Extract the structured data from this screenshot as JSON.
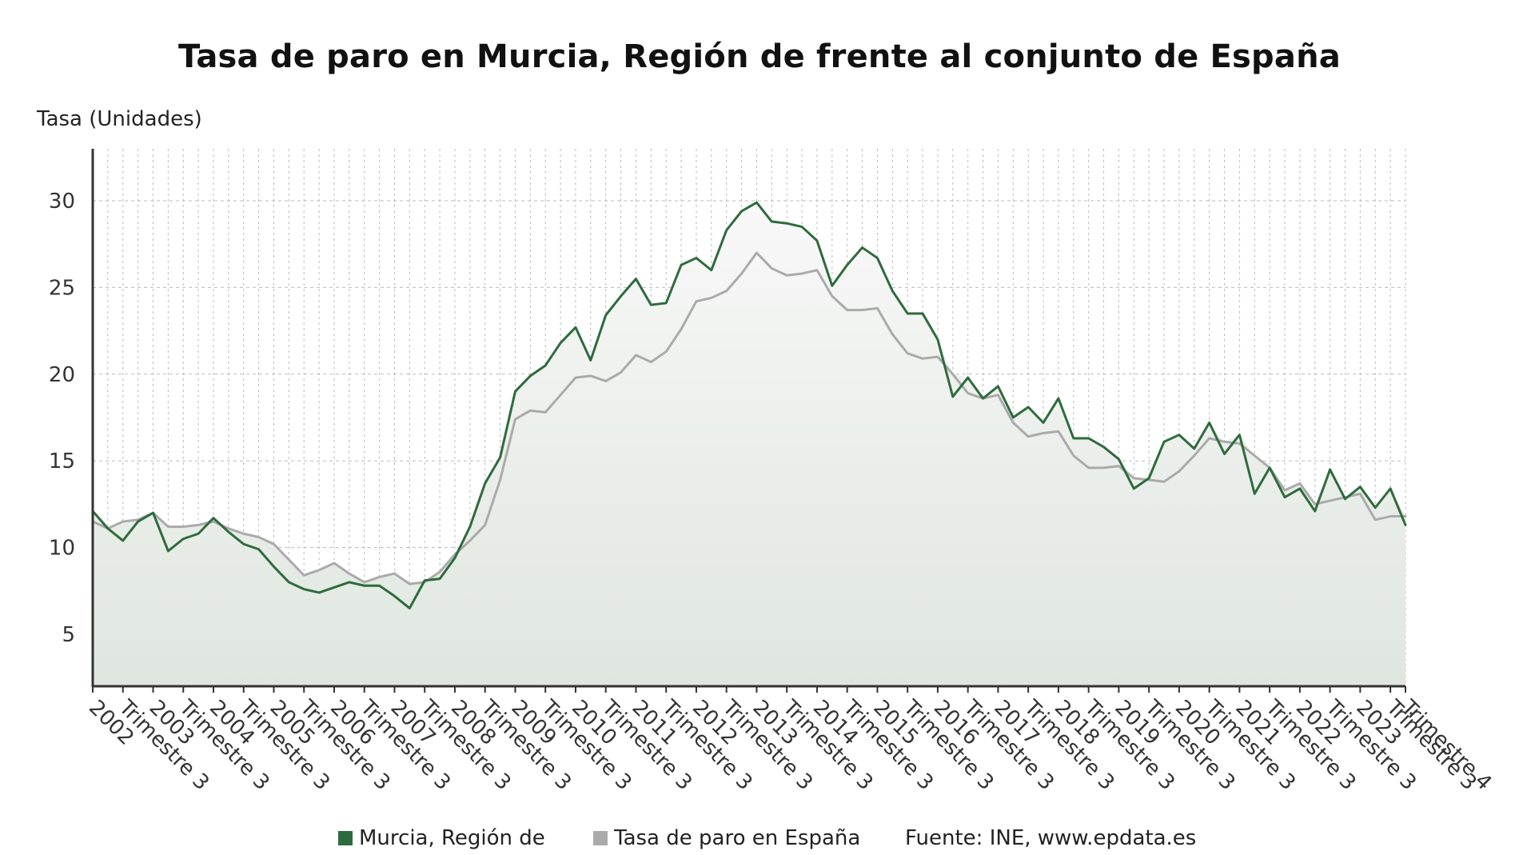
{
  "title": "Tasa de paro en Murcia, Región de frente al conjunto de España",
  "y_axis_label": "Tasa (Unidades)",
  "legend": {
    "murcia_label": "Murcia, Región de",
    "spain_label": "Tasa de paro en España",
    "source_label": "Fuente: INE, www.epdata.es"
  },
  "colors": {
    "murcia": "#2e6b3c",
    "spain": "#aaaaaa",
    "grid": "#bbbbbb",
    "axis": "#333333",
    "area_top": "#f8f8f8",
    "area_bottom": "#dfe6df"
  },
  "chart_data": {
    "type": "line",
    "title": "Tasa de paro en Murcia, Región de frente al conjunto de España",
    "ylabel": "Tasa (Unidades)",
    "ylim": [
      2,
      33
    ],
    "yticks": [
      5,
      10,
      15,
      20,
      25,
      30
    ],
    "grid": true,
    "legend_position": "bottom",
    "x_tick_labels": [
      "2002",
      "Trimestre 3",
      "2003",
      "Trimestre 3",
      "2004",
      "Trimestre 3",
      "2005",
      "Trimestre 3",
      "2006",
      "Trimestre 3",
      "2007",
      "Trimestre 3",
      "2008",
      "Trimestre 3",
      "2009",
      "Trimestre 3",
      "2010",
      "Trimestre 3",
      "2011",
      "Trimestre 3",
      "2012",
      "Trimestre 3",
      "2013",
      "Trimestre 3",
      "2014",
      "Trimestre 3",
      "2015",
      "Trimestre 3",
      "2016",
      "Trimestre 3",
      "2017",
      "Trimestre 3",
      "2018",
      "Trimestre 3",
      "2019",
      "Trimestre 3",
      "2020",
      "Trimestre 3",
      "2021",
      "Trimestre 3",
      "2022",
      "Trimestre 3",
      "2023",
      "Trimestre 3",
      "Trimestre 4"
    ],
    "series": [
      {
        "name": "Murcia, Región de",
        "values": [
          12.1,
          11.1,
          10.4,
          11.5,
          12.0,
          9.8,
          10.5,
          10.8,
          11.7,
          10.9,
          10.2,
          9.9,
          8.9,
          8.0,
          7.6,
          7.4,
          7.7,
          8.0,
          7.8,
          7.8,
          7.2,
          6.5,
          8.1,
          8.2,
          9.4,
          11.2,
          13.7,
          15.2,
          19.0,
          19.9,
          20.5,
          21.8,
          22.7,
          20.8,
          23.4,
          24.5,
          25.5,
          24.0,
          24.1,
          26.3,
          26.7,
          26.0,
          28.3,
          29.4,
          29.9,
          28.8,
          28.7,
          28.5,
          27.7,
          25.1,
          26.3,
          27.3,
          26.7,
          24.8,
          23.5,
          23.5,
          22.0,
          18.7,
          19.8,
          18.6,
          19.3,
          17.5,
          18.1,
          17.2,
          18.6,
          16.3,
          16.3,
          15.8,
          15.1,
          13.4,
          14.0,
          16.1,
          16.5,
          15.7,
          17.2,
          15.4,
          16.5,
          13.1,
          14.6,
          12.9,
          13.4,
          12.1,
          14.5,
          12.8,
          13.5,
          12.3,
          13.4,
          11.3
        ]
      },
      {
        "name": "Tasa de paro en España",
        "values": [
          11.5,
          11.1,
          11.5,
          11.6,
          12.0,
          11.2,
          11.2,
          11.3,
          11.5,
          11.1,
          10.8,
          10.6,
          10.2,
          9.3,
          8.4,
          8.7,
          9.1,
          8.5,
          8.0,
          8.3,
          8.5,
          7.9,
          8.0,
          8.6,
          9.6,
          10.4,
          11.3,
          13.9,
          17.4,
          17.9,
          17.8,
          18.8,
          19.8,
          19.9,
          19.6,
          20.1,
          21.1,
          20.7,
          21.3,
          22.6,
          24.2,
          24.4,
          24.8,
          25.8,
          27.0,
          26.1,
          25.7,
          25.8,
          26.0,
          24.5,
          23.7,
          23.7,
          23.8,
          22.3,
          21.2,
          20.9,
          21.0,
          20.0,
          18.9,
          18.6,
          18.8,
          17.2,
          16.4,
          16.6,
          16.7,
          15.3,
          14.6,
          14.6,
          14.7,
          14.0,
          13.9,
          13.8,
          14.4,
          15.3,
          16.3,
          16.1,
          16.0,
          15.3,
          14.6,
          13.3,
          13.7,
          12.5,
          12.7,
          12.9,
          13.1,
          11.6,
          11.8,
          11.8
        ]
      }
    ]
  }
}
